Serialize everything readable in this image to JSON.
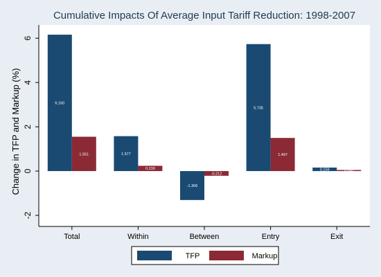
{
  "chart_data": {
    "type": "bar",
    "title": "Cumulative Impacts Of Average Input Tariff Reduction: 1998-2007",
    "xlabel": "",
    "ylabel": "Change in TFP and Markup (%)",
    "ylim": [
      -2.5,
      6.6
    ],
    "yticks": [
      -2,
      0,
      2,
      4,
      6
    ],
    "ytick_labels": [
      "-2",
      "0",
      "2",
      "4",
      "6"
    ],
    "grid": false,
    "legend_position": "bottom",
    "categories": [
      "Total",
      "Within",
      "Between",
      "Entry",
      "Exit"
    ],
    "series": [
      {
        "name": "TFP",
        "color": "#1a4a72",
        "values": [
          6.16,
          1.577,
          -1.306,
          5.735,
          0.159
        ],
        "value_labels": [
          "6.160",
          "1.577",
          "-1.306",
          "5.735",
          "0.159"
        ]
      },
      {
        "name": "Markup",
        "color": "#8b2a35",
        "values": [
          1.551,
          0.239,
          -0.212,
          1.497,
          0.05
        ],
        "value_labels": [
          "1.551",
          "0.239",
          "-0.212",
          "1.497",
          "0.050"
        ]
      }
    ]
  },
  "colors": {
    "background": "#e8eef3",
    "plot_background": "#ffffff"
  }
}
